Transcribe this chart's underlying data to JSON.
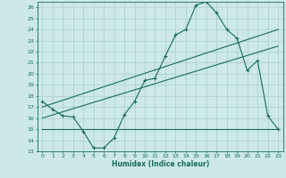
{
  "xlabel": "Humidex (Indice chaleur)",
  "bg_color": "#cce8e8",
  "line_color": "#1a6b5a",
  "grid_color": "#aacece",
  "xlim": [
    -0.5,
    23.5
  ],
  "ylim": [
    13,
    26.5
  ],
  "yticks": [
    13,
    14,
    15,
    16,
    17,
    18,
    19,
    20,
    21,
    22,
    23,
    24,
    25,
    26
  ],
  "xticks": [
    0,
    1,
    2,
    3,
    4,
    5,
    6,
    7,
    8,
    9,
    10,
    11,
    12,
    13,
    14,
    15,
    16,
    17,
    18,
    19,
    20,
    21,
    22,
    23
  ],
  "main_x": [
    0,
    1,
    2,
    3,
    4,
    5,
    6,
    7,
    8,
    9,
    10,
    11,
    12,
    13,
    14,
    15,
    16,
    17,
    18,
    19,
    20,
    21,
    22,
    23
  ],
  "main_y": [
    17.5,
    16.8,
    16.2,
    16.1,
    14.8,
    13.3,
    13.3,
    14.2,
    16.3,
    17.5,
    19.4,
    19.6,
    21.6,
    23.5,
    24.0,
    26.2,
    26.5,
    25.5,
    24.0,
    23.2,
    20.3,
    21.2,
    16.2,
    15.0
  ],
  "line1_x": [
    0,
    23
  ],
  "line1_y": [
    17.0,
    24.0
  ],
  "line2_x": [
    0,
    23
  ],
  "line2_y": [
    16.0,
    22.5
  ],
  "line3_x": [
    0,
    23
  ],
  "line3_y": [
    15.0,
    15.0
  ]
}
